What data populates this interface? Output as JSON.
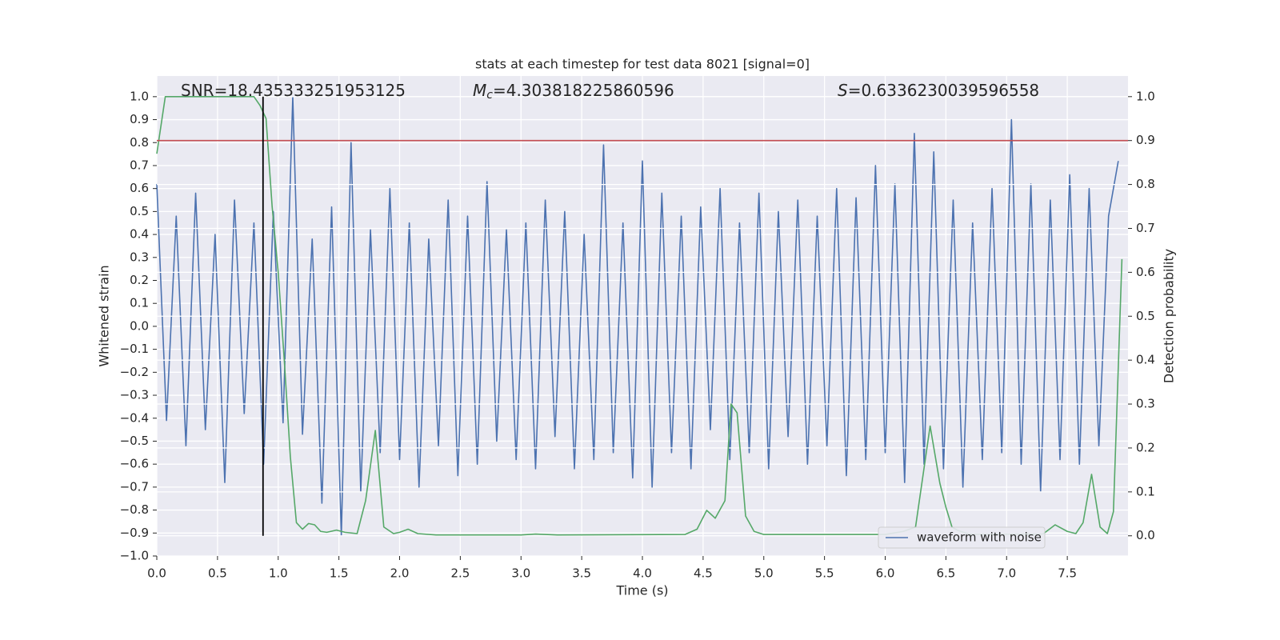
{
  "chart_data": {
    "type": "line",
    "title": "stats at each timestep for test data 8021 [signal=0]",
    "x_label": "Time (s)",
    "y_label": "Whitened strain",
    "y2_label": "Detection probability",
    "annotations": [
      {
        "symbol": "SNR",
        "text": "=18.435333251953125"
      },
      {
        "symbol": "M",
        "subscript": "c",
        "text": "=4.303818225860596"
      },
      {
        "symbol": "S",
        "text": "=0.6336230039596558"
      }
    ],
    "xlim": [
      0,
      8
    ],
    "ylim": [
      -1.0,
      1.09
    ],
    "y2lim": [
      -0.046,
      1.047
    ],
    "xticks": [
      {
        "value": 0,
        "label": "0.0"
      },
      {
        "value": 0.5,
        "label": "0.5"
      },
      {
        "value": 1,
        "label": "1.0"
      },
      {
        "value": 1.5,
        "label": "1.5"
      },
      {
        "value": 2,
        "label": "2.0"
      },
      {
        "value": 2.5,
        "label": "2.5"
      },
      {
        "value": 3,
        "label": "3.0"
      },
      {
        "value": 3.5,
        "label": "3.5"
      },
      {
        "value": 4,
        "label": "4.0"
      },
      {
        "value": 4.5,
        "label": "4.5"
      },
      {
        "value": 5,
        "label": "5.0"
      },
      {
        "value": 5.5,
        "label": "5.5"
      },
      {
        "value": 6,
        "label": "6.0"
      },
      {
        "value": 6.5,
        "label": "6.5"
      },
      {
        "value": 7,
        "label": "7.0"
      },
      {
        "value": 7.5,
        "label": "7.5"
      }
    ],
    "yticks": [
      {
        "value": -1,
        "label": "−1.0"
      },
      {
        "value": -0.9,
        "label": "−0.9"
      },
      {
        "value": -0.8,
        "label": "−0.8"
      },
      {
        "value": -0.7,
        "label": "−0.7"
      },
      {
        "value": -0.6,
        "label": "−0.6"
      },
      {
        "value": -0.5,
        "label": "−0.5"
      },
      {
        "value": -0.4,
        "label": "−0.4"
      },
      {
        "value": -0.3,
        "label": "−0.3"
      },
      {
        "value": -0.2,
        "label": "−0.2"
      },
      {
        "value": -0.1,
        "label": "−0.1"
      },
      {
        "value": 0,
        "label": "0.0"
      },
      {
        "value": 0.1,
        "label": "0.1"
      },
      {
        "value": 0.2,
        "label": "0.2"
      },
      {
        "value": 0.3,
        "label": "0.3"
      },
      {
        "value": 0.4,
        "label": "0.4"
      },
      {
        "value": 0.5,
        "label": "0.5"
      },
      {
        "value": 0.6,
        "label": "0.6"
      },
      {
        "value": 0.7,
        "label": "0.7"
      },
      {
        "value": 0.8,
        "label": "0.8"
      },
      {
        "value": 0.9,
        "label": "0.9"
      },
      {
        "value": 1,
        "label": "1.0"
      }
    ],
    "y2ticks": [
      {
        "value": 0,
        "label": "0.0"
      },
      {
        "value": 0.1,
        "label": "0.1"
      },
      {
        "value": 0.2,
        "label": "0.2"
      },
      {
        "value": 0.3,
        "label": "0.3"
      },
      {
        "value": 0.4,
        "label": "0.4"
      },
      {
        "value": 0.5,
        "label": "0.5"
      },
      {
        "value": 0.6,
        "label": "0.6"
      },
      {
        "value": 0.7,
        "label": "0.7"
      },
      {
        "value": 0.8,
        "label": "0.8"
      },
      {
        "value": 0.9,
        "label": "0.9"
      },
      {
        "value": 1,
        "label": "1.0"
      }
    ],
    "grid": true,
    "legend": "lower right",
    "series": [
      {
        "name": "waveform with noise",
        "color": "#4c72b0",
        "x": [
          0,
          0.08,
          0.16,
          0.24,
          0.32,
          0.4,
          0.48,
          0.56,
          0.64,
          0.72,
          0.8,
          0.88,
          0.96,
          1.04,
          1.12,
          1.2,
          1.28,
          1.36,
          1.44,
          1.52,
          1.6,
          1.68,
          1.76,
          1.84,
          1.92,
          2,
          2.08,
          2.16,
          2.24,
          2.32,
          2.4,
          2.48,
          2.56,
          2.64,
          2.72,
          2.8,
          2.88,
          2.96,
          3.04,
          3.12,
          3.2,
          3.28,
          3.36,
          3.44,
          3.52,
          3.6,
          3.68,
          3.76,
          3.84,
          3.92,
          4,
          4.08,
          4.16,
          4.24,
          4.32,
          4.4,
          4.48,
          4.56,
          4.64,
          4.72,
          4.8,
          4.88,
          4.96,
          5.04,
          5.12,
          5.2,
          5.28,
          5.36,
          5.44,
          5.52,
          5.6,
          5.68,
          5.76,
          5.84,
          5.92,
          6,
          6.08,
          6.16,
          6.24,
          6.32,
          6.4,
          6.48,
          6.56,
          6.64,
          6.72,
          6.8,
          6.88,
          6.96,
          7.04,
          7.12,
          7.2,
          7.28,
          7.36,
          7.44,
          7.52,
          7.6,
          7.68,
          7.76,
          7.84,
          7.92
        ],
        "values": [
          0.62,
          -0.41,
          0.48,
          -0.52,
          0.58,
          -0.45,
          0.4,
          -0.68,
          0.55,
          -0.38,
          0.45,
          -0.6,
          0.5,
          -0.42,
          1.0,
          -0.47,
          0.38,
          -0.77,
          0.52,
          -0.91,
          0.8,
          -0.72,
          0.42,
          -0.55,
          0.6,
          -0.58,
          0.45,
          -0.7,
          0.38,
          -0.52,
          0.55,
          -0.65,
          0.48,
          -0.6,
          0.63,
          -0.5,
          0.42,
          -0.58,
          0.45,
          -0.62,
          0.55,
          -0.48,
          0.5,
          -0.62,
          0.4,
          -0.58,
          0.79,
          -0.55,
          0.45,
          -0.66,
          0.72,
          -0.7,
          0.58,
          -0.55,
          0.48,
          -0.62,
          0.52,
          -0.45,
          0.6,
          -0.58,
          0.45,
          -0.55,
          0.58,
          -0.62,
          0.5,
          -0.48,
          0.55,
          -0.6,
          0.48,
          -0.52,
          0.6,
          -0.65,
          0.56,
          -0.58,
          0.7,
          -0.55,
          0.62,
          -0.68,
          0.84,
          -0.6,
          0.76,
          -0.62,
          0.55,
          -0.7,
          0.45,
          -0.58,
          0.6,
          -0.55,
          0.9,
          -0.6,
          0.62,
          -0.72,
          0.55,
          -0.58,
          0.66,
          -0.6,
          0.6,
          -0.52,
          0.48,
          0.72
        ]
      },
      {
        "color": "#55a868",
        "axis": "y2",
        "x": [
          0,
          0.07,
          0.15,
          0.8,
          0.85,
          0.9,
          0.95,
          1,
          1.05,
          1.1,
          1.15,
          1.2,
          1.25,
          1.3,
          1.35,
          1.4,
          1.48,
          1.55,
          1.65,
          1.72,
          1.8,
          1.87,
          1.95,
          2,
          2.07,
          2.15,
          2.3,
          2.6,
          3,
          3.12,
          3.3,
          4.35,
          4.45,
          4.53,
          4.6,
          4.68,
          4.73,
          4.78,
          4.85,
          4.92,
          5,
          5.2,
          6,
          6.15,
          6.25,
          6.37,
          6.45,
          6.5,
          6.55,
          6.6,
          6.7,
          7.3,
          7.4,
          7.5,
          7.57,
          7.63,
          7.7,
          7.77,
          7.83,
          7.88,
          7.95
        ],
        "values": [
          0.87,
          1.0,
          1.0,
          1.0,
          0.98,
          0.95,
          0.75,
          0.6,
          0.4,
          0.18,
          0.03,
          0.015,
          0.028,
          0.025,
          0.01,
          0.008,
          0.013,
          0.008,
          0.005,
          0.08,
          0.24,
          0.02,
          0.005,
          0.008,
          0.015,
          0.005,
          0.002,
          0.002,
          0.002,
          0.004,
          0.002,
          0.003,
          0.015,
          0.058,
          0.04,
          0.08,
          0.3,
          0.28,
          0.045,
          0.01,
          0.003,
          0.003,
          0.003,
          0.01,
          0.02,
          0.25,
          0.12,
          0.065,
          0.02,
          0.012,
          0.003,
          0.004,
          0.025,
          0.01,
          0.005,
          0.03,
          0.14,
          0.02,
          0.005,
          0.055,
          0.63
        ]
      }
    ],
    "hline": {
      "value": 0.9,
      "axis": "y2",
      "color": "#c44e52"
    },
    "vline": {
      "x": 0.875,
      "axis": "y2",
      "from": 0,
      "to": 1,
      "color": "#000000"
    }
  }
}
